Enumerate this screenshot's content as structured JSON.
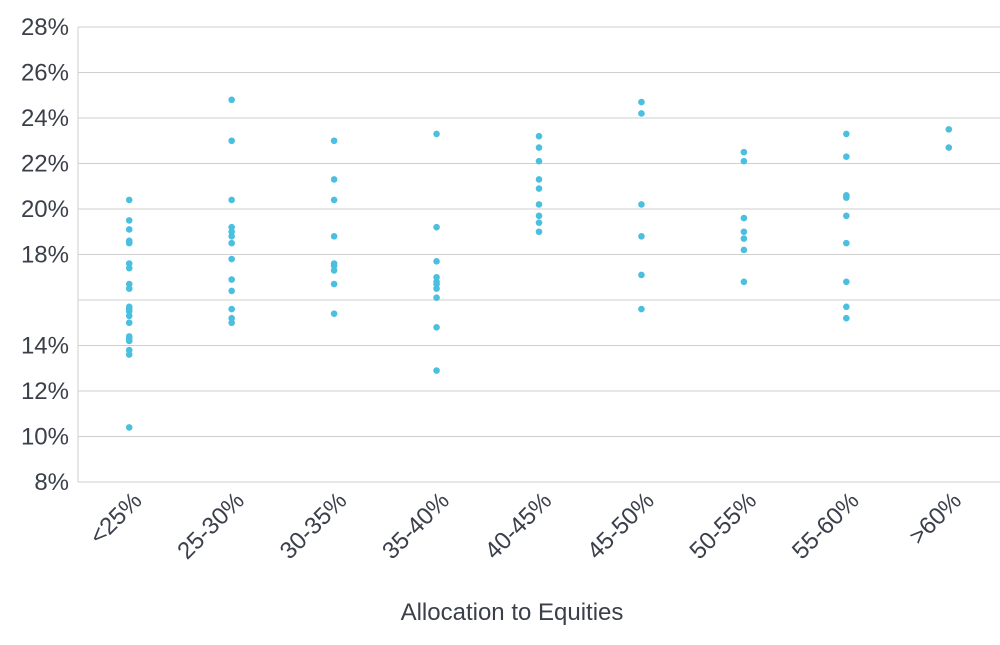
{
  "chart_data": {
    "type": "scatter",
    "xlabel": "Allocation to Equities",
    "categories": [
      "<25%",
      "25-30%",
      "30-35%",
      "35-40%",
      "40-45%",
      "45-50%",
      "50-55%",
      "55-60%",
      ">60%"
    ],
    "values": [
      [
        20.4,
        19.5,
        19.1,
        18.6,
        18.5,
        17.6,
        17.4,
        16.7,
        16.5,
        15.7,
        15.6,
        15.5,
        15.3,
        15.0,
        14.4,
        14.3,
        14.2,
        13.8,
        13.6,
        10.4
      ],
      [
        24.8,
        23.0,
        20.4,
        19.2,
        19.0,
        18.8,
        18.5,
        17.8,
        16.9,
        16.4,
        15.6,
        15.2,
        15.0
      ],
      [
        23.0,
        21.3,
        20.4,
        18.8,
        17.6,
        17.5,
        17.3,
        16.7,
        15.4
      ],
      [
        23.3,
        19.2,
        17.7,
        17.0,
        16.8,
        16.7,
        16.5,
        16.1,
        14.8,
        12.9
      ],
      [
        23.2,
        22.7,
        22.1,
        21.3,
        20.9,
        20.2,
        19.7,
        19.4,
        19.0
      ],
      [
        24.7,
        24.2,
        20.2,
        18.8,
        17.1,
        15.6
      ],
      [
        22.5,
        22.1,
        19.6,
        19.0,
        18.7,
        18.2,
        16.8
      ],
      [
        23.3,
        22.3,
        20.6,
        20.5,
        19.7,
        18.5,
        16.8,
        15.7,
        15.2
      ],
      [
        23.5,
        22.7
      ]
    ],
    "color": "#4bbfdf",
    "ylim": [
      8,
      28
    ],
    "ygrid": [
      8,
      10,
      12,
      14,
      16,
      18,
      20,
      22,
      24,
      26,
      28
    ],
    "yticks": [
      {
        "value": 28,
        "label": "28%"
      },
      {
        "value": 26,
        "label": "26%"
      },
      {
        "value": 24,
        "label": "24%"
      },
      {
        "value": 22,
        "label": "22%"
      },
      {
        "value": 20,
        "label": "20%"
      },
      {
        "value": 18,
        "label": "18%"
      },
      {
        "value": 14,
        "label": "14%"
      },
      {
        "value": 12,
        "label": "12%"
      },
      {
        "value": 10,
        "label": "10%"
      },
      {
        "value": 8,
        "label": "8%"
      }
    ],
    "grid": true
  }
}
